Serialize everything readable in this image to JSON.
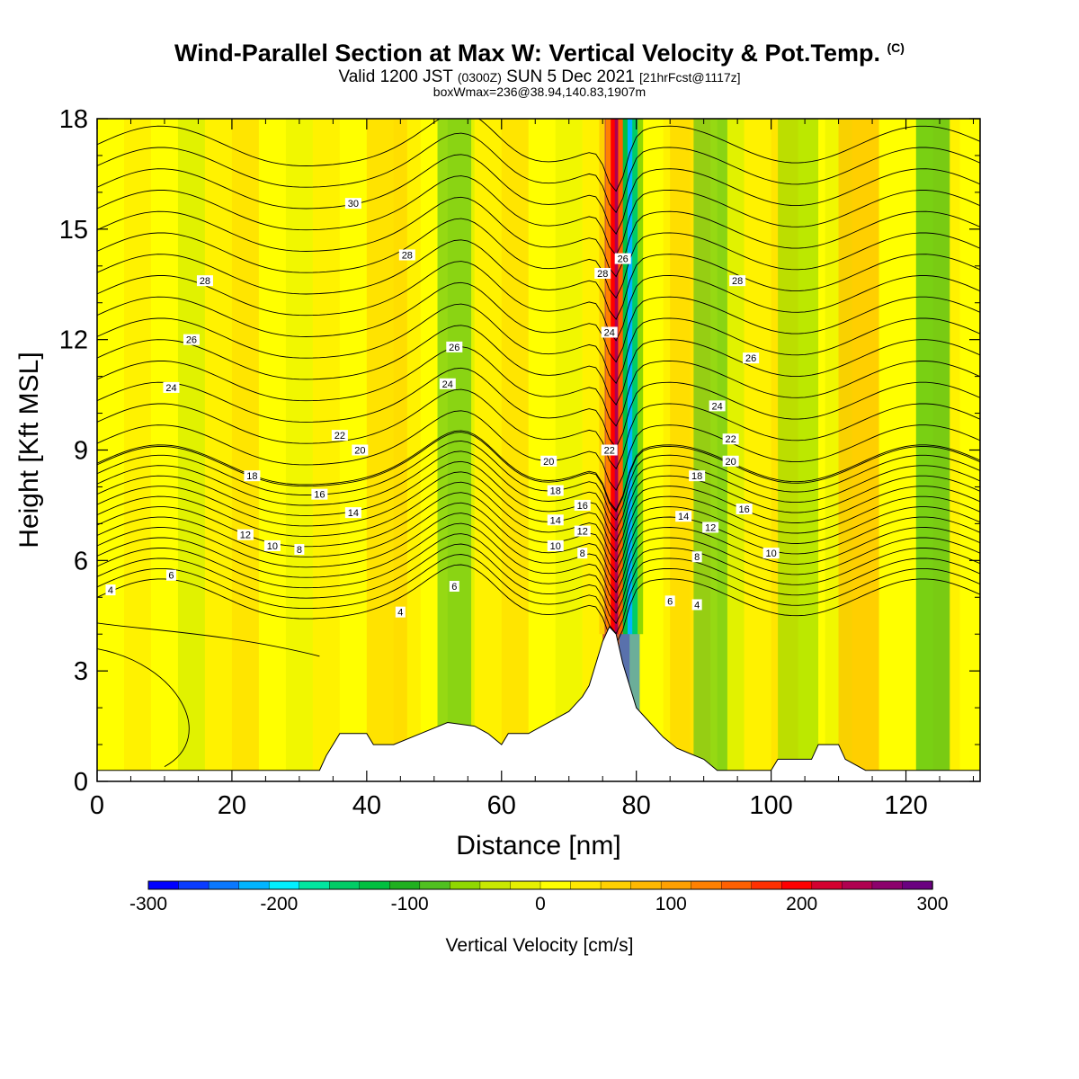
{
  "title": {
    "main": "Wind-Parallel Section at Max W: Vertical Velocity & Pot.Temp.",
    "main_suffix": "(C)",
    "line2_a": "Valid 1200 JST",
    "line2_b": "(0300Z)",
    "line2_c": "SUN 5 Dec 2021",
    "line2_d": "[21hrFcst@1117z]",
    "line3": "boxWmax=236@38.94,140.83,1907m"
  },
  "chart_data": {
    "type": "heatmap",
    "xlabel": "Distance [nm]",
    "ylabel": "Height [Kft MSL]",
    "xlim": [
      0,
      131
    ],
    "ylim": [
      0,
      18
    ],
    "x_ticks": [
      0,
      20,
      40,
      60,
      80,
      100,
      120
    ],
    "y_ticks": [
      0,
      3,
      6,
      9,
      12,
      15,
      18
    ],
    "colorbar": {
      "label": "Vertical Velocity [cm/s]",
      "range": [
        -300,
        300
      ],
      "tick_labels": [
        -300,
        -200,
        -100,
        0,
        100,
        200,
        300
      ],
      "colors": [
        "#0000ff",
        "#0a3cff",
        "#0a78ff",
        "#00b4ff",
        "#00f0ff",
        "#00e6a0",
        "#00cc66",
        "#00c040",
        "#20b020",
        "#50c020",
        "#90d800",
        "#c8e800",
        "#e6f000",
        "#ffff00",
        "#ffe800",
        "#ffd000",
        "#ffb800",
        "#ffa000",
        "#ff8000",
        "#ff6000",
        "#ff3000",
        "#ff0000",
        "#d40030",
        "#b00050",
        "#8c006c",
        "#6a0080"
      ]
    },
    "terrain_kft": [
      [
        0,
        0.3
      ],
      [
        33,
        0.3
      ],
      [
        34,
        0.7
      ],
      [
        35,
        1.0
      ],
      [
        36,
        1.3
      ],
      [
        40,
        1.3
      ],
      [
        41,
        1.0
      ],
      [
        44,
        1.0
      ],
      [
        48,
        1.3
      ],
      [
        52,
        1.6
      ],
      [
        56,
        1.5
      ],
      [
        58,
        1.3
      ],
      [
        60,
        1.0
      ],
      [
        61,
        1.3
      ],
      [
        64,
        1.3
      ],
      [
        66,
        1.5
      ],
      [
        68,
        1.7
      ],
      [
        70,
        1.9
      ],
      [
        72,
        2.3
      ],
      [
        73,
        2.6
      ],
      [
        74,
        3.2
      ],
      [
        75,
        3.8
      ],
      [
        76,
        4.2
      ],
      [
        77,
        4.0
      ],
      [
        78,
        3.2
      ],
      [
        79,
        2.6
      ],
      [
        80,
        2.0
      ],
      [
        82,
        1.6
      ],
      [
        84,
        1.2
      ],
      [
        86,
        0.9
      ],
      [
        90,
        0.6
      ],
      [
        92,
        0.3
      ],
      [
        100,
        0.3
      ],
      [
        101,
        0.6
      ],
      [
        106,
        0.6
      ],
      [
        107,
        1.0
      ],
      [
        110,
        1.0
      ],
      [
        111,
        0.6
      ],
      [
        114,
        0.3
      ],
      [
        131,
        0.3
      ]
    ],
    "vertical_velocity_bands": [
      {
        "x": 77,
        "width": 4,
        "w": 236
      },
      {
        "x": 79,
        "width": 3,
        "w": -240
      },
      {
        "x": 43,
        "width": 6,
        "w": 60
      },
      {
        "x": 53,
        "width": 5,
        "w": -80
      },
      {
        "x": 88,
        "width": 6,
        "w": 60
      },
      {
        "x": 91,
        "width": 5,
        "w": -90
      },
      {
        "x": 104,
        "width": 6,
        "w": -60
      },
      {
        "x": 113,
        "width": 6,
        "w": 70
      },
      {
        "x": 124,
        "width": 5,
        "w": -110
      }
    ],
    "theta_labels": [
      {
        "v": "4",
        "x": 2,
        "y": 5.2
      },
      {
        "v": "6",
        "x": 11,
        "y": 5.6
      },
      {
        "v": "12",
        "x": 22,
        "y": 6.7
      },
      {
        "v": "10",
        "x": 26,
        "y": 6.4
      },
      {
        "v": "8",
        "x": 30,
        "y": 6.3
      },
      {
        "v": "18",
        "x": 23,
        "y": 8.3
      },
      {
        "v": "16",
        "x": 33,
        "y": 7.8
      },
      {
        "v": "14",
        "x": 38,
        "y": 7.3
      },
      {
        "v": "20",
        "x": 39,
        "y": 9.0
      },
      {
        "v": "22",
        "x": 36,
        "y": 9.4
      },
      {
        "v": "24",
        "x": 11,
        "y": 10.7
      },
      {
        "v": "26",
        "x": 14,
        "y": 12.0
      },
      {
        "v": "28",
        "x": 16,
        "y": 13.6
      },
      {
        "v": "30",
        "x": 38,
        "y": 15.7
      },
      {
        "v": "28",
        "x": 46,
        "y": 14.3
      },
      {
        "v": "26",
        "x": 53,
        "y": 11.8
      },
      {
        "v": "24",
        "x": 52,
        "y": 10.8
      },
      {
        "v": "4",
        "x": 45,
        "y": 4.6
      },
      {
        "v": "6",
        "x": 53,
        "y": 5.3
      },
      {
        "v": "20",
        "x": 67,
        "y": 8.7
      },
      {
        "v": "18",
        "x": 68,
        "y": 7.9
      },
      {
        "v": "16",
        "x": 72,
        "y": 7.5
      },
      {
        "v": "14",
        "x": 68,
        "y": 7.1
      },
      {
        "v": "12",
        "x": 72,
        "y": 6.8
      },
      {
        "v": "10",
        "x": 68,
        "y": 6.4
      },
      {
        "v": "8",
        "x": 72,
        "y": 6.2
      },
      {
        "v": "28",
        "x": 75,
        "y": 13.8
      },
      {
        "v": "26",
        "x": 78,
        "y": 14.2
      },
      {
        "v": "24",
        "x": 76,
        "y": 12.2
      },
      {
        "v": "22",
        "x": 76,
        "y": 9.0
      },
      {
        "v": "28",
        "x": 95,
        "y": 13.6
      },
      {
        "v": "26",
        "x": 97,
        "y": 11.5
      },
      {
        "v": "24",
        "x": 92,
        "y": 10.2
      },
      {
        "v": "22",
        "x": 94,
        "y": 9.3
      },
      {
        "v": "20",
        "x": 94,
        "y": 8.7
      },
      {
        "v": "18",
        "x": 89,
        "y": 8.3
      },
      {
        "v": "16",
        "x": 96,
        "y": 7.4
      },
      {
        "v": "14",
        "x": 87,
        "y": 7.2
      },
      {
        "v": "12",
        "x": 91,
        "y": 6.9
      },
      {
        "v": "10",
        "x": 100,
        "y": 6.2
      },
      {
        "v": "8",
        "x": 89,
        "y": 6.1
      },
      {
        "v": "6",
        "x": 85,
        "y": 4.9
      },
      {
        "v": "4",
        "x": 89,
        "y": 4.8
      }
    ]
  }
}
